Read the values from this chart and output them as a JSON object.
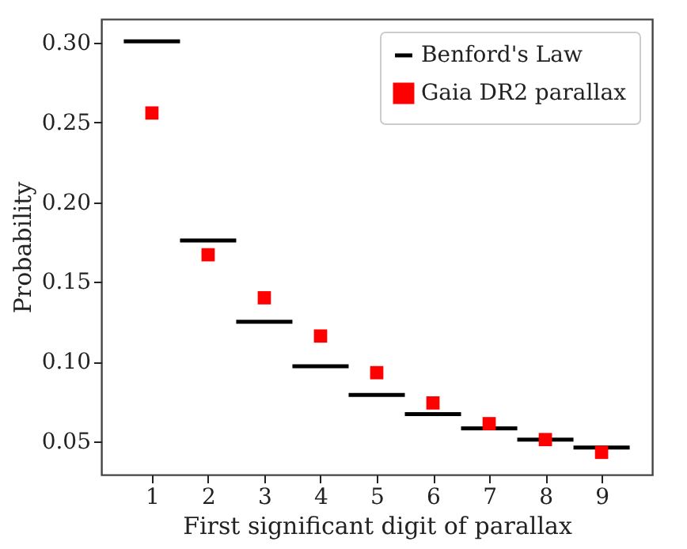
{
  "chart_data": {
    "type": "scatter",
    "xlabel": "First significant digit of parallax",
    "ylabel": "Probability",
    "xlim": [
      0.1,
      9.9
    ],
    "xticks": [
      1,
      2,
      3,
      4,
      5,
      6,
      7,
      8,
      9
    ],
    "ylim": [
      0.029,
      0.315
    ],
    "yticks": [
      {
        "value": 0.05,
        "label": "0.05"
      },
      {
        "value": 0.1,
        "label": "0.10"
      },
      {
        "value": 0.15,
        "label": "0.15"
      },
      {
        "value": 0.2,
        "label": "0.20"
      },
      {
        "value": 0.25,
        "label": "0.25"
      },
      {
        "value": 0.3,
        "label": "0.30"
      }
    ],
    "grid": false,
    "legend": "top right",
    "series": [
      {
        "name": "Benford's Law",
        "type": "line",
        "color": "#000000",
        "x": [
          0.5,
          1.5,
          1.5,
          2.5,
          2.5,
          3.5,
          3.5,
          4.5,
          4.5,
          5.5,
          5.5,
          6.5,
          6.5,
          7.5,
          7.5,
          8.5,
          8.5,
          9.5
        ],
        "values": [
          0.301,
          0.301,
          0.176,
          0.176,
          0.125,
          0.125,
          0.097,
          0.097,
          0.079,
          0.079,
          0.067,
          0.067,
          0.058,
          0.058,
          0.051,
          0.051,
          0.046,
          0.046
        ]
      },
      {
        "name": "Gaia DR2 parallax",
        "marker": "square",
        "color": "#ff0000",
        "x": [
          1,
          2,
          3,
          4,
          5,
          6,
          7,
          8,
          9
        ],
        "values": [
          0.256,
          0.167,
          0.14,
          0.116,
          0.093,
          0.074,
          0.061,
          0.051,
          0.043
        ]
      }
    ]
  }
}
